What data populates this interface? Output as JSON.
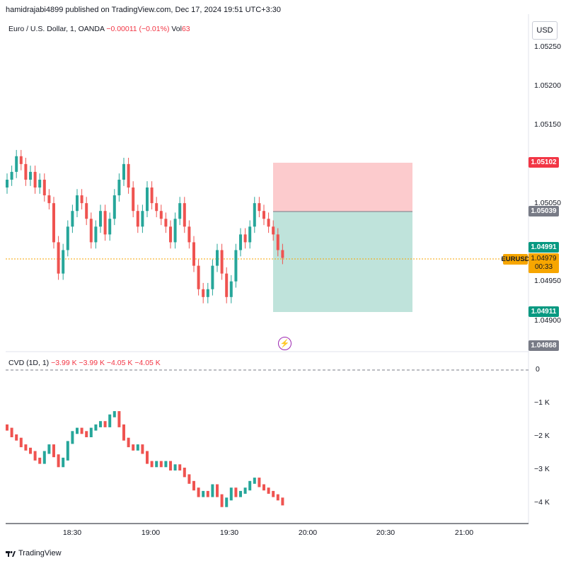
{
  "header": {
    "publisher": "hamidrajabi4899 published on TradingView.com, Dec 17, 2024 19:51 UTC+3:30"
  },
  "legend": {
    "symbol": "Euro / U.S. Dollar, 1, OANDA",
    "change": "−0.00011 (−0.01%)",
    "vol_label": "Vol",
    "vol_value": "63"
  },
  "cvd_legend": {
    "label": "CVD (1D, 1)",
    "values": "−3.99 K  −3.99 K  −4.05 K  −4.05 K"
  },
  "currency": "USD",
  "price_axis": [
    "1.05250",
    "1.05200",
    "1.05150",
    "1.05050",
    "1.04950",
    "1.04900"
  ],
  "price_tags": {
    "stop": "1.05102",
    "entry": "1.05039",
    "current_green": "1.04991",
    "last_price": "1.04979",
    "countdown": "00:33",
    "target": "1.04911",
    "low": "1.04868",
    "symbol": "EURUSD"
  },
  "cvd_axis": [
    "0",
    "−1 K",
    "−2 K",
    "−3 K",
    "−4 K"
  ],
  "time_axis": [
    "18:30",
    "19:00",
    "19:30",
    "20:00",
    "20:30",
    "21:00"
  ],
  "footer": {
    "brand": "TradingView"
  },
  "colors": {
    "up": "#26a69a",
    "down": "#ef5350",
    "stop_zone": "#fccbcd",
    "target_zone": "#bfe3db",
    "price_line": "#f7a600"
  },
  "chart_data": [
    {
      "type": "candlestick",
      "title": "Euro / U.S. Dollar, 1, OANDA",
      "ylim": [
        1.04868,
        1.0528
      ],
      "x_range": [
        "18:10",
        "21:07"
      ],
      "candles_close": [
        1.0508,
        1.0509,
        1.0511,
        1.051,
        1.0508,
        1.0509,
        1.0507,
        1.0508,
        1.0506,
        1.0505,
        1.05,
        1.0496,
        1.0499,
        1.0502,
        1.0504,
        1.0506,
        1.0505,
        1.0503,
        1.05,
        1.0502,
        1.0504,
        1.0501,
        1.0503,
        1.0506,
        1.0508,
        1.051,
        1.0507,
        1.0504,
        1.0502,
        1.0504,
        1.0507,
        1.0505,
        1.0504,
        1.0503,
        1.0502,
        1.05,
        1.0503,
        1.0505,
        1.0502,
        1.05,
        1.0497,
        1.0494,
        1.0493,
        1.0494,
        1.0497,
        1.0499,
        1.0496,
        1.0493,
        1.0495,
        1.0499,
        1.0501,
        1.05,
        1.0502,
        1.0505,
        1.0504,
        1.0503,
        1.0502,
        1.0501,
        1.0499,
        1.0498
      ],
      "position": {
        "entry": 1.05039,
        "stop": 1.05102,
        "target": 1.04911
      },
      "last_price": 1.04979
    },
    {
      "type": "line",
      "title": "CVD (1D, 1)",
      "ylim": [
        -4.5,
        0.2
      ],
      "y_unit": "K",
      "values": [
        -1.8,
        -2.0,
        -2.1,
        -2.3,
        -2.4,
        -2.5,
        -2.7,
        -2.8,
        -2.5,
        -2.3,
        -2.6,
        -2.9,
        -2.7,
        -2.2,
        -1.9,
        -1.8,
        -1.9,
        -2.0,
        -1.8,
        -1.7,
        -1.6,
        -1.7,
        -1.4,
        -1.3,
        -1.7,
        -2.1,
        -2.3,
        -2.4,
        -2.3,
        -2.5,
        -2.8,
        -2.9,
        -2.8,
        -2.9,
        -2.8,
        -3.0,
        -2.9,
        -3.0,
        -3.2,
        -3.4,
        -3.6,
        -3.8,
        -3.7,
        -3.8,
        -3.5,
        -3.8,
        -4.1,
        -3.9,
        -3.6,
        -3.8,
        -3.7,
        -3.6,
        -3.4,
        -3.3,
        -3.5,
        -3.6,
        -3.7,
        -3.8,
        -3.9,
        -4.05
      ]
    }
  ]
}
